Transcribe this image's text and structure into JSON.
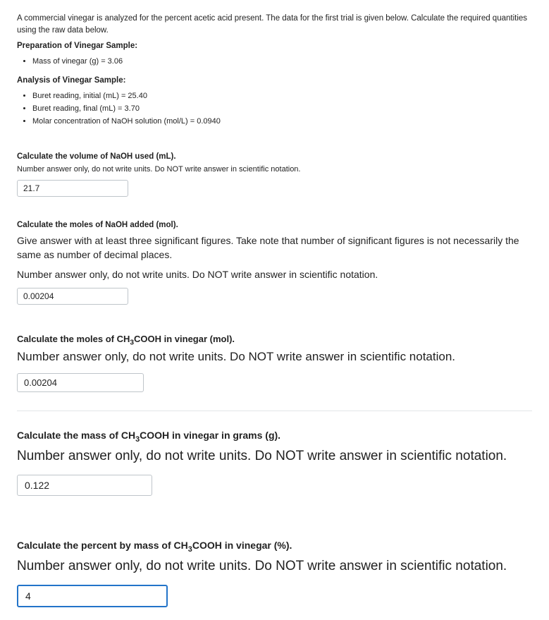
{
  "intro": "A commercial vinegar is analyzed for the percent acetic acid present. The data for the first trial is given below. Calculate the required quantities using the raw data below.",
  "prep_head": "Preparation of Vinegar Sample:",
  "prep_items": [
    "Mass of vinegar (g) = 3.06"
  ],
  "analysis_head": "Analysis of Vinegar Sample:",
  "analysis_items": [
    "Buret reading, initial (mL) = 25.40",
    "Buret reading, final (mL) = 3.70",
    "Molar concentration of NaOH solution (mol/L) = 0.0940"
  ],
  "q1": {
    "title": "Calculate the volume of NaOH used (mL).",
    "note": "Number answer only, do not write units. Do NOT write answer in scientific notation.",
    "value": "21.7"
  },
  "q2": {
    "title": "Calculate the moles of NaOH added (mol).",
    "note1": "Give answer with at least three significant figures. Take note that number of significant figures is not necessarily the same as number of decimal places.",
    "note2": "Number answer only, do not write units. Do NOT write answer in scientific notation.",
    "value": "0.00204"
  },
  "q3": {
    "title_pre": "Calculate the moles of CH",
    "title_sub": "3",
    "title_post": "COOH in vinegar (mol).",
    "note": "Number answer only, do not write units. Do NOT write answer in scientific notation.",
    "value": "0.00204"
  },
  "q4": {
    "title_pre": "Calculate the mass of CH",
    "title_sub": "3",
    "title_post": "COOH in vinegar in grams (g).",
    "note": "Number answer only, do not write units. Do NOT write answer in scientific notation.",
    "value": "0.122"
  },
  "q5": {
    "title_pre": "Calculate the percent by mass of CH",
    "title_sub": "3",
    "title_post": "COOH in vinegar (%).",
    "note": "Number answer only, do not write units. Do NOT write answer in scientific notation.",
    "value": "4"
  }
}
